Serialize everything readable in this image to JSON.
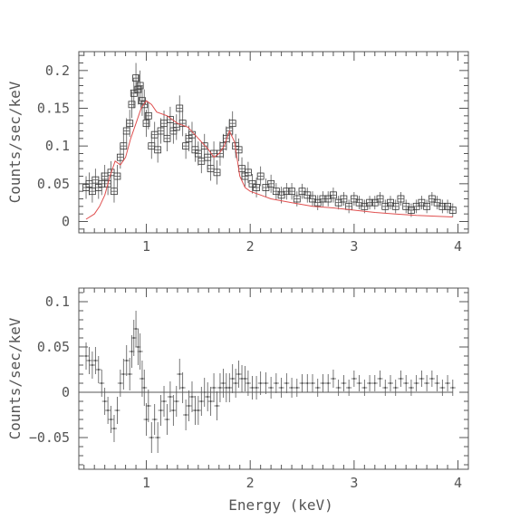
{
  "chart_data": [
    {
      "type": "scatter",
      "panel": "top",
      "ylabel": "Counts/sec/keV",
      "xlabel": "",
      "xlim": [
        0.35,
        4.1
      ],
      "ylim": [
        -0.015,
        0.225
      ],
      "x_ticks": [
        "1",
        "2",
        "3",
        "4"
      ],
      "y_ticks": [
        "0",
        "0.05",
        "0.1",
        "0.15",
        "0.2"
      ],
      "series": [
        {
          "style": "open squares with error bars",
          "x": [
            0.42,
            0.45,
            0.48,
            0.51,
            0.54,
            0.57,
            0.6,
            0.63,
            0.66,
            0.69,
            0.72,
            0.75,
            0.78,
            0.81,
            0.84,
            0.86,
            0.88,
            0.9,
            0.92,
            0.94,
            0.96,
            0.98,
            1.0,
            1.02,
            1.05,
            1.08,
            1.11,
            1.14,
            1.17,
            1.2,
            1.23,
            1.26,
            1.29,
            1.32,
            1.35,
            1.38,
            1.41,
            1.44,
            1.47,
            1.5,
            1.53,
            1.56,
            1.59,
            1.62,
            1.65,
            1.68,
            1.71,
            1.74,
            1.77,
            1.8,
            1.83,
            1.86,
            1.89,
            1.92,
            1.95,
            1.98,
            2.02,
            2.06,
            2.1,
            2.15,
            2.2,
            2.25,
            2.3,
            2.35,
            2.4,
            2.45,
            2.5,
            2.55,
            2.6,
            2.65,
            2.7,
            2.75,
            2.8,
            2.85,
            2.9,
            2.95,
            3.0,
            3.05,
            3.1,
            3.15,
            3.2,
            3.25,
            3.3,
            3.35,
            3.4,
            3.45,
            3.5,
            3.55,
            3.6,
            3.65,
            3.7,
            3.75,
            3.8,
            3.85,
            3.9,
            3.95
          ],
          "y": [
            0.045,
            0.05,
            0.04,
            0.055,
            0.045,
            0.05,
            0.06,
            0.05,
            0.065,
            0.04,
            0.06,
            0.085,
            0.1,
            0.12,
            0.13,
            0.155,
            0.17,
            0.19,
            0.175,
            0.18,
            0.16,
            0.155,
            0.13,
            0.14,
            0.1,
            0.115,
            0.095,
            0.12,
            0.13,
            0.11,
            0.135,
            0.12,
            0.125,
            0.15,
            0.13,
            0.1,
            0.11,
            0.115,
            0.095,
            0.09,
            0.08,
            0.1,
            0.085,
            0.07,
            0.09,
            0.065,
            0.09,
            0.1,
            0.11,
            0.12,
            0.13,
            0.1,
            0.095,
            0.07,
            0.06,
            0.065,
            0.05,
            0.045,
            0.06,
            0.045,
            0.05,
            0.04,
            0.035,
            0.04,
            0.04,
            0.03,
            0.04,
            0.035,
            0.03,
            0.025,
            0.03,
            0.03,
            0.035,
            0.025,
            0.03,
            0.02,
            0.03,
            0.025,
            0.02,
            0.025,
            0.025,
            0.03,
            0.02,
            0.025,
            0.02,
            0.03,
            0.02,
            0.015,
            0.02,
            0.025,
            0.02,
            0.03,
            0.025,
            0.02,
            0.02,
            0.015
          ],
          "yerr": [
            0.015,
            0.015,
            0.015,
            0.015,
            0.015,
            0.015,
            0.015,
            0.015,
            0.015,
            0.015,
            0.015,
            0.015,
            0.017,
            0.017,
            0.018,
            0.018,
            0.02,
            0.02,
            0.02,
            0.02,
            0.02,
            0.02,
            0.018,
            0.018,
            0.017,
            0.017,
            0.017,
            0.017,
            0.017,
            0.017,
            0.017,
            0.017,
            0.017,
            0.017,
            0.017,
            0.017,
            0.017,
            0.017,
            0.016,
            0.016,
            0.016,
            0.016,
            0.016,
            0.016,
            0.016,
            0.016,
            0.016,
            0.016,
            0.016,
            0.016,
            0.016,
            0.016,
            0.015,
            0.015,
            0.014,
            0.014,
            0.013,
            0.013,
            0.013,
            0.012,
            0.012,
            0.011,
            0.011,
            0.011,
            0.011,
            0.01,
            0.01,
            0.01,
            0.01,
            0.01,
            0.01,
            0.01,
            0.01,
            0.009,
            0.009,
            0.009,
            0.009,
            0.009,
            0.009,
            0.009,
            0.009,
            0.009,
            0.009,
            0.009,
            0.009,
            0.009,
            0.009,
            0.009,
            0.009,
            0.009,
            0.009,
            0.009,
            0.009,
            0.009,
            0.009,
            0.009
          ]
        },
        {
          "style": "model line",
          "color": "#e05050",
          "x": [
            0.42,
            0.5,
            0.55,
            0.6,
            0.65,
            0.7,
            0.75,
            0.8,
            0.85,
            0.9,
            0.95,
            1.0,
            1.05,
            1.1,
            1.2,
            1.3,
            1.4,
            1.5,
            1.6,
            1.65,
            1.7,
            1.75,
            1.8,
            1.85,
            1.9,
            1.95,
            2.0,
            2.1,
            2.2,
            2.4,
            2.6,
            2.8,
            3.0,
            3.2,
            3.4,
            3.6,
            3.8,
            3.95
          ],
          "y": [
            0.003,
            0.01,
            0.02,
            0.035,
            0.06,
            0.08,
            0.075,
            0.085,
            0.11,
            0.13,
            0.15,
            0.16,
            0.155,
            0.145,
            0.14,
            0.13,
            0.125,
            0.11,
            0.095,
            0.085,
            0.09,
            0.1,
            0.12,
            0.105,
            0.06,
            0.045,
            0.04,
            0.035,
            0.03,
            0.025,
            0.02,
            0.018,
            0.015,
            0.012,
            0.01,
            0.008,
            0.007,
            0.006
          ]
        }
      ]
    },
    {
      "type": "scatter",
      "panel": "bottom",
      "ylabel": "Counts/sec/keV",
      "xlabel": "Energy (keV)",
      "xlim": [
        0.35,
        4.1
      ],
      "ylim": [
        -0.085,
        0.115
      ],
      "x_ticks": [
        "1",
        "2",
        "3",
        "4"
      ],
      "y_ticks": [
        "−0.05",
        "0",
        "0.05",
        "0.1"
      ],
      "series": [
        {
          "style": "residual points with error bars",
          "x": [
            0.42,
            0.45,
            0.48,
            0.51,
            0.54,
            0.57,
            0.6,
            0.63,
            0.66,
            0.69,
            0.72,
            0.75,
            0.78,
            0.81,
            0.84,
            0.86,
            0.88,
            0.9,
            0.92,
            0.94,
            0.96,
            0.98,
            1.0,
            1.02,
            1.05,
            1.08,
            1.11,
            1.14,
            1.17,
            1.2,
            1.23,
            1.26,
            1.29,
            1.32,
            1.35,
            1.38,
            1.41,
            1.44,
            1.47,
            1.5,
            1.53,
            1.56,
            1.59,
            1.62,
            1.65,
            1.68,
            1.71,
            1.74,
            1.77,
            1.8,
            1.83,
            1.86,
            1.89,
            1.92,
            1.95,
            1.98,
            2.02,
            2.06,
            2.1,
            2.15,
            2.2,
            2.25,
            2.3,
            2.35,
            2.4,
            2.45,
            2.5,
            2.55,
            2.6,
            2.65,
            2.7,
            2.75,
            2.8,
            2.85,
            2.9,
            2.95,
            3.0,
            3.05,
            3.1,
            3.15,
            3.2,
            3.25,
            3.3,
            3.35,
            3.4,
            3.45,
            3.5,
            3.55,
            3.6,
            3.65,
            3.7,
            3.75,
            3.8,
            3.85,
            3.9,
            3.95
          ],
          "y": [
            0.04,
            0.035,
            0.03,
            0.035,
            0.025,
            0.01,
            -0.01,
            -0.02,
            -0.03,
            -0.04,
            -0.02,
            0.01,
            0.02,
            0.035,
            0.02,
            0.045,
            0.06,
            0.07,
            0.05,
            0.045,
            0.015,
            0.005,
            -0.03,
            -0.015,
            -0.05,
            -0.03,
            -0.05,
            -0.02,
            -0.01,
            -0.03,
            -0.005,
            -0.02,
            -0.01,
            0.02,
            0.005,
            -0.025,
            -0.015,
            -0.005,
            -0.02,
            -0.02,
            -0.01,
            0.0,
            -0.005,
            -0.01,
            0.005,
            -0.015,
            0.005,
            0.01,
            0.005,
            0.005,
            0.015,
            0.01,
            0.02,
            0.015,
            0.015,
            0.01,
            0.005,
            0.005,
            0.01,
            0.01,
            0.005,
            0.01,
            0.005,
            0.01,
            0.005,
            0.005,
            0.01,
            0.01,
            0.01,
            0.005,
            0.01,
            0.01,
            0.015,
            0.005,
            0.01,
            0.005,
            0.015,
            0.01,
            0.005,
            0.01,
            0.01,
            0.015,
            0.005,
            0.01,
            0.005,
            0.015,
            0.01,
            0.005,
            0.01,
            0.015,
            0.01,
            0.015,
            0.01,
            0.005,
            0.01,
            0.005
          ],
          "yerr": [
            0.015,
            0.015,
            0.015,
            0.015,
            0.015,
            0.015,
            0.015,
            0.015,
            0.015,
            0.015,
            0.015,
            0.015,
            0.017,
            0.017,
            0.018,
            0.018,
            0.02,
            0.02,
            0.02,
            0.02,
            0.02,
            0.02,
            0.018,
            0.018,
            0.017,
            0.017,
            0.017,
            0.017,
            0.017,
            0.017,
            0.017,
            0.017,
            0.017,
            0.017,
            0.017,
            0.017,
            0.017,
            0.017,
            0.016,
            0.016,
            0.016,
            0.016,
            0.016,
            0.016,
            0.016,
            0.016,
            0.016,
            0.016,
            0.016,
            0.016,
            0.016,
            0.016,
            0.015,
            0.015,
            0.014,
            0.014,
            0.013,
            0.013,
            0.013,
            0.012,
            0.012,
            0.011,
            0.011,
            0.011,
            0.011,
            0.01,
            0.01,
            0.01,
            0.01,
            0.01,
            0.01,
            0.01,
            0.01,
            0.009,
            0.009,
            0.009,
            0.009,
            0.009,
            0.009,
            0.009,
            0.009,
            0.009,
            0.009,
            0.009,
            0.009,
            0.009,
            0.009,
            0.009,
            0.009,
            0.009,
            0.009,
            0.009,
            0.009,
            0.009,
            0.009,
            0.009
          ]
        },
        {
          "style": "zero line",
          "x": [
            0.42,
            3.95
          ],
          "y": [
            0,
            0
          ]
        }
      ]
    }
  ]
}
